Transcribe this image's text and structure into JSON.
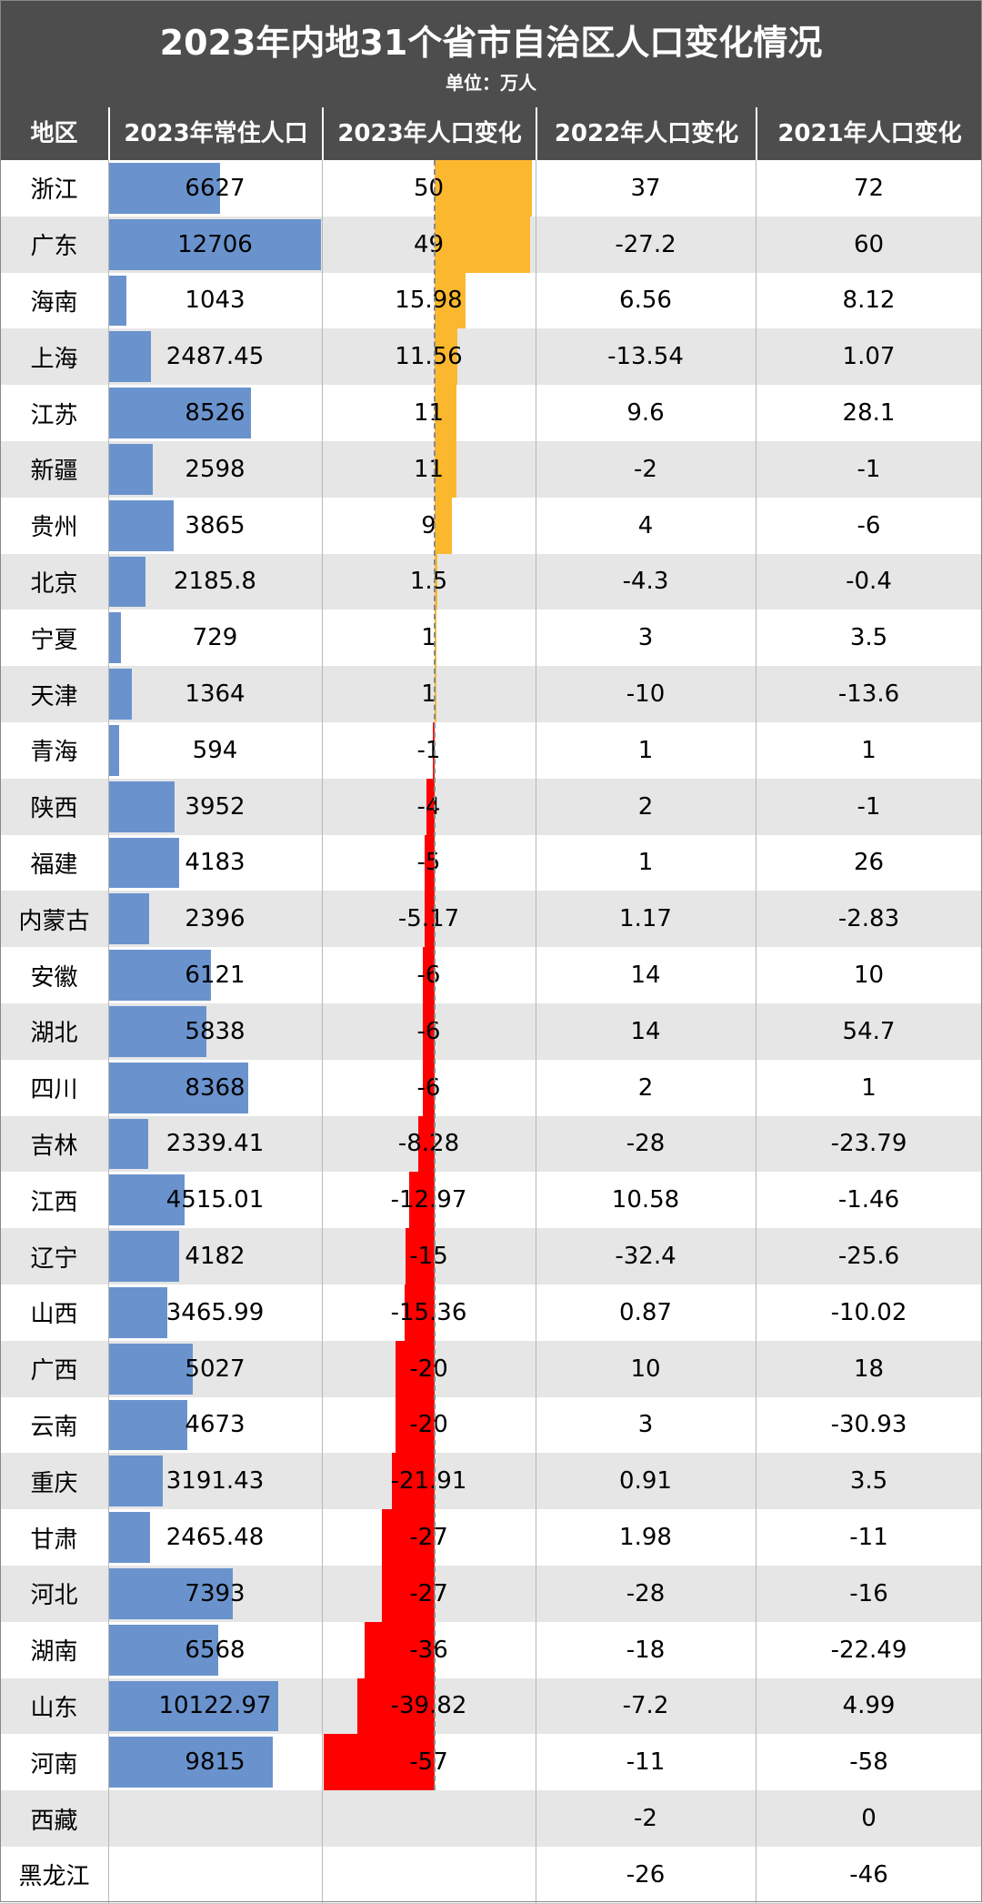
{
  "header": {
    "title": "2023年内地31个省市自治区人口变化情况",
    "subtitle": "单位：万人"
  },
  "columns": [
    "地区",
    "2023年常住人口",
    "2023年人口变化",
    "2022年人口变化",
    "2021年人口变化"
  ],
  "colors": {
    "header_bg": "#4d4d4d",
    "population_bar": "#6a93cd",
    "positive_change_bar": "#fbb82f",
    "negative_change_bar": "#ff0000",
    "row_alt": "#e6e6e6"
  },
  "chart_data": {
    "type": "table",
    "rows": [
      {
        "region": "浙江",
        "pop2023": "6627",
        "chg2023": "50",
        "chg2022": "37",
        "chg2021": "72"
      },
      {
        "region": "广东",
        "pop2023": "12706",
        "chg2023": "49",
        "chg2022": "-27.2",
        "chg2021": "60"
      },
      {
        "region": "海南",
        "pop2023": "1043",
        "chg2023": "15.98",
        "chg2022": "6.56",
        "chg2021": "8.12"
      },
      {
        "region": "上海",
        "pop2023": "2487.45",
        "chg2023": "11.56",
        "chg2022": "-13.54",
        "chg2021": "1.07"
      },
      {
        "region": "江苏",
        "pop2023": "8526",
        "chg2023": "11",
        "chg2022": "9.6",
        "chg2021": "28.1"
      },
      {
        "region": "新疆",
        "pop2023": "2598",
        "chg2023": "11",
        "chg2022": "-2",
        "chg2021": "-1"
      },
      {
        "region": "贵州",
        "pop2023": "3865",
        "chg2023": "9",
        "chg2022": "4",
        "chg2021": "-6"
      },
      {
        "region": "北京",
        "pop2023": "2185.8",
        "chg2023": "1.5",
        "chg2022": "-4.3",
        "chg2021": "-0.4"
      },
      {
        "region": "宁夏",
        "pop2023": "729",
        "chg2023": "1",
        "chg2022": "3",
        "chg2021": "3.5"
      },
      {
        "region": "天津",
        "pop2023": "1364",
        "chg2023": "1",
        "chg2022": "-10",
        "chg2021": "-13.6"
      },
      {
        "region": "青海",
        "pop2023": "594",
        "chg2023": "-1",
        "chg2022": "1",
        "chg2021": "1"
      },
      {
        "region": "陕西",
        "pop2023": "3952",
        "chg2023": "-4",
        "chg2022": "2",
        "chg2021": "-1"
      },
      {
        "region": "福建",
        "pop2023": "4183",
        "chg2023": "-5",
        "chg2022": "1",
        "chg2021": "26"
      },
      {
        "region": "内蒙古",
        "pop2023": "2396",
        "chg2023": "-5.17",
        "chg2022": "1.17",
        "chg2021": "-2.83"
      },
      {
        "region": "安徽",
        "pop2023": "6121",
        "chg2023": "-6",
        "chg2022": "14",
        "chg2021": "10"
      },
      {
        "region": "湖北",
        "pop2023": "5838",
        "chg2023": "-6",
        "chg2022": "14",
        "chg2021": "54.7"
      },
      {
        "region": "四川",
        "pop2023": "8368",
        "chg2023": "-6",
        "chg2022": "2",
        "chg2021": "1"
      },
      {
        "region": "吉林",
        "pop2023": "2339.41",
        "chg2023": "-8.28",
        "chg2022": "-28",
        "chg2021": "-23.79"
      },
      {
        "region": "江西",
        "pop2023": "4515.01",
        "chg2023": "-12.97",
        "chg2022": "10.58",
        "chg2021": "-1.46"
      },
      {
        "region": "辽宁",
        "pop2023": "4182",
        "chg2023": "-15",
        "chg2022": "-32.4",
        "chg2021": "-25.6"
      },
      {
        "region": "山西",
        "pop2023": "3465.99",
        "chg2023": "-15.36",
        "chg2022": "0.87",
        "chg2021": "-10.02"
      },
      {
        "region": "广西",
        "pop2023": "5027",
        "chg2023": "-20",
        "chg2022": "10",
        "chg2021": "18"
      },
      {
        "region": "云南",
        "pop2023": "4673",
        "chg2023": "-20",
        "chg2022": "3",
        "chg2021": "-30.93"
      },
      {
        "region": "重庆",
        "pop2023": "3191.43",
        "chg2023": "-21.91",
        "chg2022": "0.91",
        "chg2021": "3.5"
      },
      {
        "region": "甘肃",
        "pop2023": "2465.48",
        "chg2023": "-27",
        "chg2022": "1.98",
        "chg2021": "-11"
      },
      {
        "region": "河北",
        "pop2023": "7393",
        "chg2023": "-27",
        "chg2022": "-28",
        "chg2021": "-16"
      },
      {
        "region": "湖南",
        "pop2023": "6568",
        "chg2023": "-36",
        "chg2022": "-18",
        "chg2021": "-22.49"
      },
      {
        "region": "山东",
        "pop2023": "10122.97",
        "chg2023": "-39.82",
        "chg2022": "-7.2",
        "chg2021": "4.99"
      },
      {
        "region": "河南",
        "pop2023": "9815",
        "chg2023": "-57",
        "chg2022": "-11",
        "chg2021": "-58"
      },
      {
        "region": "西藏",
        "pop2023": "",
        "chg2023": "",
        "chg2022": "-2",
        "chg2021": "0"
      },
      {
        "region": "黑龙江",
        "pop2023": "",
        "chg2023": "",
        "chg2022": "-26",
        "chg2021": "-46"
      }
    ]
  }
}
